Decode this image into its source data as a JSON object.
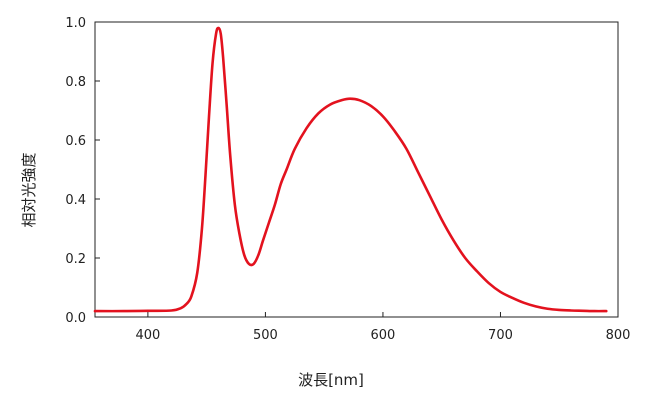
{
  "chart_data": {
    "type": "line",
    "title": "",
    "xlabel": "波長[nm]",
    "ylabel": "相対光強度",
    "xlim": [
      355,
      800
    ],
    "ylim": [
      0,
      1.0
    ],
    "xticks": [
      400,
      500,
      600,
      700,
      800
    ],
    "yticks": [
      0.0,
      0.2,
      0.4,
      0.6,
      0.8,
      1.0
    ],
    "xtick_labels": [
      "400",
      "500",
      "600",
      "700",
      "800"
    ],
    "ytick_labels": [
      "0.0",
      "0.2",
      "0.4",
      "0.6",
      "0.8",
      "1.0"
    ],
    "grid": false,
    "legend": "none",
    "series": [
      {
        "color": "#e3121e",
        "x": [
          355,
          380,
          400,
          420,
          428,
          433,
          437,
          442,
          446,
          449,
          452,
          455,
          458,
          460,
          462,
          464,
          467,
          470,
          474,
          478,
          482,
          486,
          490,
          494,
          498,
          503,
          508,
          513,
          518,
          525,
          535,
          545,
          555,
          565,
          572,
          580,
          590,
          600,
          610,
          620,
          630,
          640,
          650,
          660,
          670,
          680,
          690,
          700,
          710,
          720,
          730,
          740,
          750,
          760,
          770,
          780,
          790
        ],
        "y": [
          0.02,
          0.02,
          0.021,
          0.022,
          0.03,
          0.045,
          0.07,
          0.15,
          0.3,
          0.48,
          0.68,
          0.86,
          0.96,
          0.98,
          0.96,
          0.88,
          0.72,
          0.55,
          0.38,
          0.28,
          0.21,
          0.18,
          0.18,
          0.21,
          0.26,
          0.32,
          0.38,
          0.45,
          0.5,
          0.57,
          0.64,
          0.69,
          0.72,
          0.735,
          0.74,
          0.735,
          0.715,
          0.68,
          0.63,
          0.57,
          0.49,
          0.41,
          0.33,
          0.26,
          0.2,
          0.155,
          0.115,
          0.085,
          0.065,
          0.048,
          0.036,
          0.028,
          0.024,
          0.022,
          0.021,
          0.02,
          0.02
        ]
      }
    ]
  }
}
